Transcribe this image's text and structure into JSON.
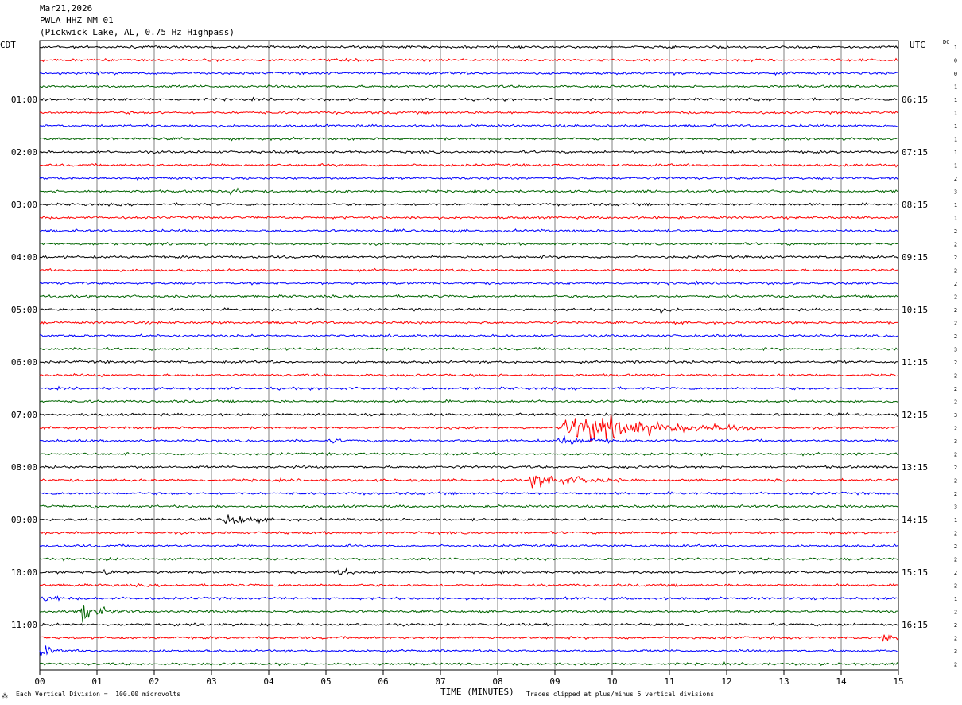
{
  "header": {
    "date": "Mar21,2026",
    "station": "PWLA HHZ NM 01",
    "location": "(Pickwick Lake, AL, 0.75 Hz Highpass)"
  },
  "labels": {
    "left_zone": "CDT",
    "right_zone": "UTC",
    "dc": "DC",
    "xlabel": "TIME (MINUTES)",
    "scale_note": "Each Vertical Division =  100.00 microvolts",
    "clip_note": "Traces clipped at plus/minus 5 vertical divisions"
  },
  "colors": {
    "trace_cycle": [
      "#000000",
      "#ff0000",
      "#0000ff",
      "#006400"
    ],
    "grid": "#808080"
  },
  "chart_data": {
    "type": "seismogram",
    "title": "PWLA HHZ NM 01",
    "xlabel": "TIME (MINUTES)",
    "xlim": [
      0,
      15
    ],
    "x_ticks": [
      "00",
      "01",
      "02",
      "03",
      "04",
      "05",
      "06",
      "07",
      "08",
      "09",
      "10",
      "11",
      "12",
      "13",
      "14",
      "15"
    ],
    "trace_count": 48,
    "trace_interval_minutes": 15,
    "cdt_labels": [
      {
        "trace": 4,
        "label": "01:00"
      },
      {
        "trace": 8,
        "label": "02:00"
      },
      {
        "trace": 12,
        "label": "03:00"
      },
      {
        "trace": 16,
        "label": "04:00"
      },
      {
        "trace": 20,
        "label": "05:00"
      },
      {
        "trace": 24,
        "label": "06:00"
      },
      {
        "trace": 28,
        "label": "07:00"
      },
      {
        "trace": 32,
        "label": "08:00"
      },
      {
        "trace": 36,
        "label": "09:00"
      },
      {
        "trace": 40,
        "label": "10:00"
      },
      {
        "trace": 44,
        "label": "11:00"
      }
    ],
    "utc_labels": [
      {
        "trace": 4,
        "label": "06:15"
      },
      {
        "trace": 8,
        "label": "07:15"
      },
      {
        "trace": 12,
        "label": "08:15"
      },
      {
        "trace": 16,
        "label": "09:15"
      },
      {
        "trace": 20,
        "label": "10:15"
      },
      {
        "trace": 24,
        "label": "11:15"
      },
      {
        "trace": 28,
        "label": "12:15"
      },
      {
        "trace": 32,
        "label": "13:15"
      },
      {
        "trace": 36,
        "label": "14:15"
      },
      {
        "trace": 40,
        "label": "15:15"
      },
      {
        "trace": 44,
        "label": "16:15"
      }
    ],
    "dc_offsets": [
      "1",
      "0",
      "0",
      "1",
      "1",
      "1",
      "1",
      "1",
      "1",
      "1",
      "2",
      "3",
      "1",
      "1",
      "2",
      "2",
      "2",
      "2",
      "2",
      "2",
      "2",
      "2",
      "2",
      "3",
      "2",
      "2",
      "2",
      "2",
      "3",
      "2",
      "3",
      "2",
      "2",
      "2",
      "2",
      "3",
      "1",
      "2",
      "2",
      "2",
      "2",
      "2",
      "1",
      "2",
      "2",
      "2",
      "3",
      "2"
    ],
    "events": [
      {
        "trace": 11,
        "start_min": 3.3,
        "end_min": 3.85,
        "amplitude_div": 1.6
      },
      {
        "trace": 20,
        "start_min": 10.6,
        "end_min": 12.0,
        "amplitude_div": 1.0
      },
      {
        "trace": 29,
        "start_min": 9.1,
        "end_min": 12.5,
        "amplitude_div": 5.0
      },
      {
        "trace": 30,
        "start_min": 9.0,
        "end_min": 11.5,
        "amplitude_div": 1.2
      },
      {
        "trace": 30,
        "start_min": 5.1,
        "end_min": 5.6,
        "amplitude_div": 0.8
      },
      {
        "trace": 33,
        "start_min": 8.5,
        "end_min": 11.5,
        "amplitude_div": 1.8
      },
      {
        "trace": 35,
        "start_min": 0.9,
        "end_min": 1.3,
        "amplitude_div": 0.8
      },
      {
        "trace": 36,
        "start_min": 3.2,
        "end_min": 4.6,
        "amplitude_div": 1.8
      },
      {
        "trace": 39,
        "start_min": 1.1,
        "end_min": 1.8,
        "amplitude_div": 1.0
      },
      {
        "trace": 40,
        "start_min": 1.1,
        "end_min": 1.5,
        "amplitude_div": 1.8
      },
      {
        "trace": 40,
        "start_min": 5.2,
        "end_min": 5.8,
        "amplitude_div": 1.6
      },
      {
        "trace": 42,
        "start_min": 0.0,
        "end_min": 1.5,
        "amplitude_div": 1.0
      },
      {
        "trace": 43,
        "start_min": 0.7,
        "end_min": 1.7,
        "amplitude_div": 2.6
      },
      {
        "trace": 45,
        "start_min": 14.7,
        "end_min": 15.0,
        "amplitude_div": 2.6
      },
      {
        "trace": 46,
        "start_min": 0.0,
        "end_min": 0.6,
        "amplitude_div": 2.0
      }
    ]
  }
}
